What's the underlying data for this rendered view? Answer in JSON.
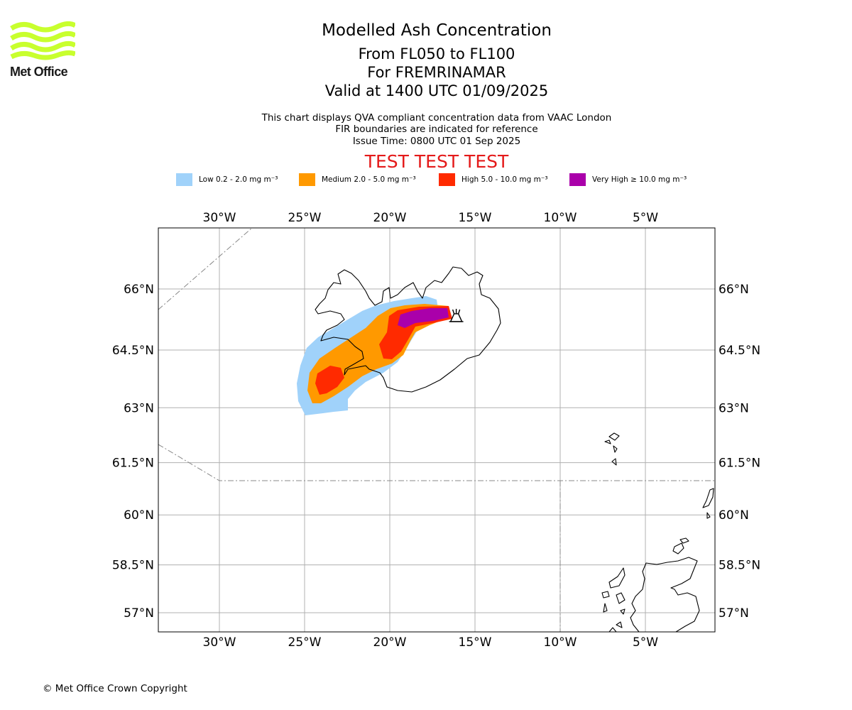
{
  "logo": {
    "text": "Met Office",
    "color": "#c8ff2e"
  },
  "title": {
    "main": "Modelled Ash Concentration",
    "levels": "From FL050 to FL100",
    "region": "For FREMRINAMAR",
    "valid": "Valid at 1400 UTC 01/09/2025"
  },
  "subtitle": {
    "line1": "This chart displays QVA compliant concentration data from VAAC London",
    "line2": "FIR boundaries are indicated for reference",
    "line3": "Issue Time: 0800 UTC 01 Sep 2025"
  },
  "banner": {
    "text": "TEST TEST TEST",
    "color": "#e41a1a"
  },
  "legend": [
    {
      "label": "Low 0.2 - 2.0 mg m⁻³",
      "color": "#a0d2fa"
    },
    {
      "label": "Medium 2.0 - 5.0 mg m⁻³",
      "color": "#ff9900"
    },
    {
      "label": "High 5.0 - 10.0 mg m⁻³",
      "color": "#ff2a00"
    },
    {
      "label": "Very High  ≥  10.0 mg m⁻³",
      "color": "#aa00aa"
    }
  ],
  "map": {
    "lon_ticks": [
      {
        "value": -30,
        "label": "30°W"
      },
      {
        "value": -25,
        "label": "25°W"
      },
      {
        "value": -20,
        "label": "20°W"
      },
      {
        "value": -15,
        "label": "15°W"
      },
      {
        "value": -10,
        "label": "10°W"
      },
      {
        "value": -5,
        "label": "5°W"
      }
    ],
    "lat_ticks": [
      {
        "value": 66,
        "label": "66°N"
      },
      {
        "value": 64.5,
        "label": "64.5°N"
      },
      {
        "value": 63,
        "label": "63°N"
      },
      {
        "value": 61.5,
        "label": "61.5°N"
      },
      {
        "value": 60,
        "label": "60°N"
      },
      {
        "value": 58.5,
        "label": "58.5°N"
      },
      {
        "value": 57,
        "label": "57°N"
      }
    ],
    "extent": {
      "lon_min": -33.6,
      "lon_max": -1.0,
      "lat_min": 56.5,
      "lat_max": 67.6
    },
    "volcano": {
      "lon": -16.6,
      "lat": 65.4
    }
  },
  "footer": {
    "copyright": "© Met Office Crown Copyright"
  }
}
